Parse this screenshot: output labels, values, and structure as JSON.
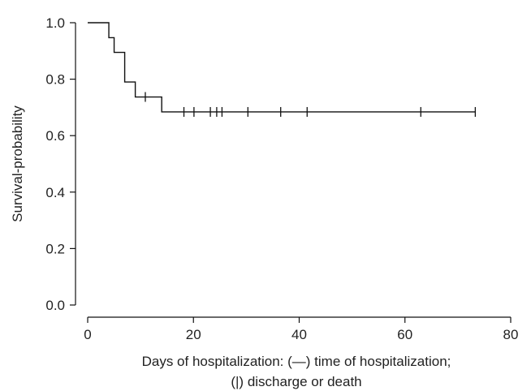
{
  "chart_data": {
    "type": "line",
    "subtype": "step",
    "title": "",
    "xlabel_line1": "Days of hospitalization: (—) time of hospitalization;",
    "xlabel_line2": "(|) discharge or death",
    "ylabel": "Survival-probability",
    "xlim": [
      0,
      80
    ],
    "ylim": [
      0,
      1.0
    ],
    "x_ticks": [
      0,
      20,
      40,
      60,
      80
    ],
    "x_tick_labels": [
      "0",
      "20",
      "40",
      "60",
      "80"
    ],
    "y_ticks": [
      0.0,
      0.2,
      0.4,
      0.6,
      0.8,
      1.0
    ],
    "y_tick_labels": [
      "0.0",
      "0.2",
      "0.4",
      "0.6",
      "0.8",
      "1.0"
    ],
    "grid": false,
    "series": [
      {
        "x": [
          0,
          4,
          5,
          7,
          9,
          14,
          73.3
        ],
        "y": [
          1.0,
          0.947,
          0.895,
          0.79,
          0.737,
          0.684,
          0.684
        ]
      }
    ],
    "censor_marks": [
      {
        "x": 10.9,
        "y": 0.737
      },
      {
        "x": 18.2,
        "y": 0.684
      },
      {
        "x": 20.1,
        "y": 0.684
      },
      {
        "x": 23.2,
        "y": 0.684
      },
      {
        "x": 24.4,
        "y": 0.684
      },
      {
        "x": 25.4,
        "y": 0.684
      },
      {
        "x": 30.3,
        "y": 0.684
      },
      {
        "x": 36.5,
        "y": 0.684
      },
      {
        "x": 41.5,
        "y": 0.684
      },
      {
        "x": 63.0,
        "y": 0.684
      },
      {
        "x": 73.3,
        "y": 0.684
      }
    ],
    "line_color": "#111111",
    "axis_color": "#111111"
  }
}
